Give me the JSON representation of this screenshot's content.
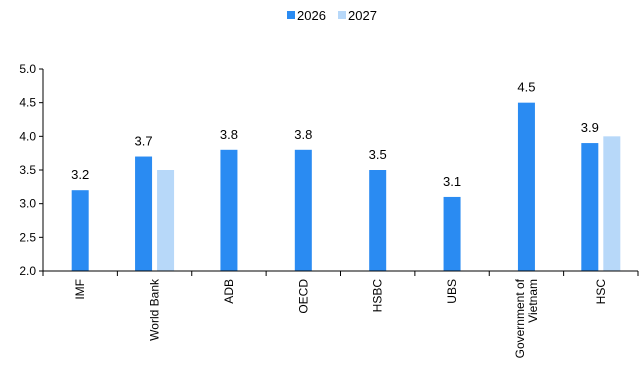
{
  "chart_data": {
    "type": "bar",
    "categories": [
      "IMF",
      "World Bank",
      "ADB",
      "OECD",
      "HSBC",
      "UBS",
      "Government of Vietnam",
      "HSC"
    ],
    "category_lines": [
      [
        "IMF"
      ],
      [
        "World Bank"
      ],
      [
        "ADB"
      ],
      [
        "OECD"
      ],
      [
        "HSBC"
      ],
      [
        "UBS"
      ],
      [
        "Government of",
        "Vietnam"
      ],
      [
        "HSC"
      ]
    ],
    "series": [
      {
        "name": "2026",
        "color": "#2A8BF2",
        "values": [
          3.2,
          3.7,
          3.8,
          3.8,
          3.5,
          3.1,
          4.5,
          3.9
        ],
        "labels": [
          "3.2",
          "3.7",
          "3.8",
          "3.8",
          "3.5",
          "3.1",
          "4.5",
          "3.9"
        ]
      },
      {
        "name": "2027",
        "color": "#B7D8F9",
        "values": [
          null,
          3.5,
          null,
          null,
          null,
          null,
          null,
          4.0
        ],
        "labels": []
      }
    ],
    "yticks": [
      "2.0",
      "2.5",
      "3.0",
      "3.5",
      "4.0",
      "4.5",
      "5.0"
    ],
    "ylim": [
      2.0,
      5.0
    ],
    "title": "",
    "xlabel": "",
    "ylabel": "",
    "grid": false,
    "legend_position": "top-center"
  }
}
